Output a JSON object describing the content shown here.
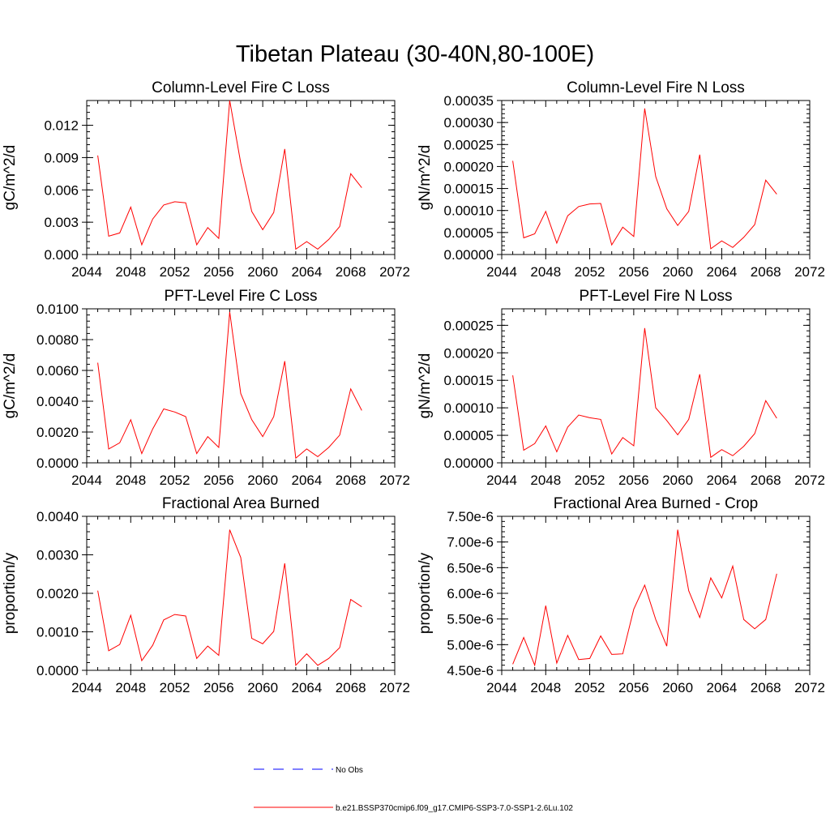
{
  "title": "Tibetan Plateau (30-40N,80-100E)",
  "colors": {
    "model": "#ff0000",
    "obs": "#0000ff",
    "axes": "#000000"
  },
  "legend": [
    {
      "label": "No Obs",
      "color": "#0000ff",
      "style": "dashed"
    },
    {
      "label": "b.e21.BSSP370cmip6.f09_g17.CMIP6-SSP3-7.0-SSP1-2.6Lu.102",
      "color": "#ff0000",
      "style": "solid"
    }
  ],
  "chart_data": [
    {
      "type": "line",
      "title": "Column-Level Fire C Loss",
      "ylabel": "gC/m^2/d",
      "xlim": [
        2044,
        2072
      ],
      "ylim": [
        0,
        0.0143
      ],
      "xticks": [
        "2044",
        "2048",
        "2052",
        "2056",
        "2060",
        "2064",
        "2068",
        "2072"
      ],
      "yticks": [
        {
          "v": 0,
          "label": "0.000"
        },
        {
          "v": 0.003,
          "label": "0.003"
        },
        {
          "v": 0.006,
          "label": "0.006"
        },
        {
          "v": 0.009,
          "label": "0.009"
        },
        {
          "v": 0.012,
          "label": "0.012"
        }
      ],
      "x": [
        2045,
        2046,
        2047,
        2048,
        2049,
        2050,
        2051,
        2052,
        2053,
        2054,
        2055,
        2056,
        2057,
        2058,
        2059,
        2060,
        2061,
        2062,
        2063,
        2064,
        2065,
        2066,
        2067,
        2068,
        2069
      ],
      "series": [
        {
          "values": [
            0.0092,
            0.0017,
            0.002,
            0.0044,
            0.0009,
            0.0033,
            0.0046,
            0.0049,
            0.0048,
            0.0009,
            0.0025,
            0.0015,
            0.0143,
            0.0085,
            0.004,
            0.0023,
            0.0039,
            0.0098,
            0.0005,
            0.0012,
            0.0005,
            0.0014,
            0.0026,
            0.0075,
            0.0062
          ]
        }
      ]
    },
    {
      "type": "line",
      "title": "Column-Level Fire N Loss",
      "ylabel": "gN/m^2/d",
      "xlim": [
        2044,
        2072
      ],
      "ylim": [
        0,
        0.00035
      ],
      "xticks": [
        "2044",
        "2048",
        "2052",
        "2056",
        "2060",
        "2064",
        "2068",
        "2072"
      ],
      "yticks": [
        {
          "v": 0,
          "label": "0.00000"
        },
        {
          "v": 5e-05,
          "label": "0.00005"
        },
        {
          "v": 0.0001,
          "label": "0.00010"
        },
        {
          "v": 0.00015,
          "label": "0.00015"
        },
        {
          "v": 0.0002,
          "label": "0.00020"
        },
        {
          "v": 0.00025,
          "label": "0.00025"
        },
        {
          "v": 0.0003,
          "label": "0.00030"
        },
        {
          "v": 0.00035,
          "label": "0.00035"
        }
      ],
      "x": [
        2045,
        2046,
        2047,
        2048,
        2049,
        2050,
        2051,
        2052,
        2053,
        2054,
        2055,
        2056,
        2057,
        2058,
        2059,
        2060,
        2061,
        2062,
        2063,
        2064,
        2065,
        2066,
        2067,
        2068,
        2069
      ],
      "series": [
        {
          "values": [
            0.000213,
            3.8e-05,
            4.7e-05,
            9.8e-05,
            2.6e-05,
            8.8e-05,
            0.000109,
            0.000115,
            0.000116,
            2.2e-05,
            6.2e-05,
            4.1e-05,
            0.000332,
            0.000177,
            0.000104,
            6.6e-05,
            9.8e-05,
            0.000227,
            1.3e-05,
            3.1e-05,
            1.6e-05,
            3.9e-05,
            6.8e-05,
            0.000169,
            0.000137
          ]
        }
      ]
    },
    {
      "type": "line",
      "title": "PFT-Level Fire C Loss",
      "ylabel": "gC/m^2/d",
      "xlim": [
        2044,
        2072
      ],
      "ylim": [
        0,
        0.01
      ],
      "xticks": [
        "2044",
        "2048",
        "2052",
        "2056",
        "2060",
        "2064",
        "2068",
        "2072"
      ],
      "yticks": [
        {
          "v": 0,
          "label": "0.0000"
        },
        {
          "v": 0.002,
          "label": "0.0020"
        },
        {
          "v": 0.004,
          "label": "0.0040"
        },
        {
          "v": 0.006,
          "label": "0.0060"
        },
        {
          "v": 0.008,
          "label": "0.0080"
        },
        {
          "v": 0.01,
          "label": "0.0100"
        }
      ],
      "x": [
        2045,
        2046,
        2047,
        2048,
        2049,
        2050,
        2051,
        2052,
        2053,
        2054,
        2055,
        2056,
        2057,
        2058,
        2059,
        2060,
        2061,
        2062,
        2063,
        2064,
        2065,
        2066,
        2067,
        2068,
        2069
      ],
      "series": [
        {
          "values": [
            0.0065,
            0.0009,
            0.0013,
            0.0028,
            0.0006,
            0.0022,
            0.0035,
            0.0033,
            0.003,
            0.0006,
            0.0017,
            0.001,
            0.0098,
            0.0045,
            0.0028,
            0.0017,
            0.003,
            0.0066,
            0.0003,
            0.0009,
            0.0004,
            0.001,
            0.0018,
            0.0048,
            0.0034
          ]
        }
      ]
    },
    {
      "type": "line",
      "title": "PFT-Level Fire N Loss",
      "ylabel": "gN/m^2/d",
      "xlim": [
        2044,
        2072
      ],
      "ylim": [
        0,
        0.00028
      ],
      "xticks": [
        "2044",
        "2048",
        "2052",
        "2056",
        "2060",
        "2064",
        "2068",
        "2072"
      ],
      "yticks": [
        {
          "v": 0,
          "label": "0.00000"
        },
        {
          "v": 5e-05,
          "label": "0.00005"
        },
        {
          "v": 0.0001,
          "label": "0.00010"
        },
        {
          "v": 0.00015,
          "label": "0.00015"
        },
        {
          "v": 0.0002,
          "label": "0.00020"
        },
        {
          "v": 0.00025,
          "label": "0.00025"
        }
      ],
      "x": [
        2045,
        2046,
        2047,
        2048,
        2049,
        2050,
        2051,
        2052,
        2053,
        2054,
        2055,
        2056,
        2057,
        2058,
        2059,
        2060,
        2061,
        2062,
        2063,
        2064,
        2065,
        2066,
        2067,
        2068,
        2069
      ],
      "series": [
        {
          "values": [
            0.000159,
            2.3e-05,
            3.5e-05,
            6.7e-05,
            2e-05,
            6.5e-05,
            8.7e-05,
            8.2e-05,
            7.9e-05,
            1.6e-05,
            4.6e-05,
            3.1e-05,
            0.000245,
            0.0001,
            7.7e-05,
            5.1e-05,
            7.9e-05,
            0.000161,
            1e-05,
            2.4e-05,
            1.3e-05,
            3e-05,
            5.3e-05,
            0.000113,
            8.1e-05
          ]
        }
      ]
    },
    {
      "type": "line",
      "title": "Fractional Area Burned",
      "ylabel": "proportion/y",
      "xlim": [
        2044,
        2072
      ],
      "ylim": [
        0,
        0.004
      ],
      "xticks": [
        "2044",
        "2048",
        "2052",
        "2056",
        "2060",
        "2064",
        "2068",
        "2072"
      ],
      "yticks": [
        {
          "v": 0,
          "label": "0.0000"
        },
        {
          "v": 0.001,
          "label": "0.0010"
        },
        {
          "v": 0.002,
          "label": "0.0020"
        },
        {
          "v": 0.003,
          "label": "0.0030"
        },
        {
          "v": 0.004,
          "label": "0.0040"
        }
      ],
      "x": [
        2045,
        2046,
        2047,
        2048,
        2049,
        2050,
        2051,
        2052,
        2053,
        2054,
        2055,
        2056,
        2057,
        2058,
        2059,
        2060,
        2061,
        2062,
        2063,
        2064,
        2065,
        2066,
        2067,
        2068,
        2069
      ],
      "series": [
        {
          "values": [
            0.00207,
            0.00051,
            0.00067,
            0.00143,
            0.00025,
            0.00065,
            0.00131,
            0.00145,
            0.00141,
            0.00031,
            0.00063,
            0.00039,
            0.00365,
            0.00293,
            0.00083,
            0.00069,
            0.00101,
            0.00278,
            0.00013,
            0.00043,
            0.00013,
            0.00031,
            0.00059,
            0.00184,
            0.00165
          ]
        }
      ]
    },
    {
      "type": "line",
      "title": "Fractional Area Burned - Crop",
      "ylabel": "proportion/y",
      "xlim": [
        2044,
        2072
      ],
      "ylim": [
        4.5e-06,
        7.5e-06
      ],
      "xticks": [
        "2044",
        "2048",
        "2052",
        "2056",
        "2060",
        "2064",
        "2068",
        "2072"
      ],
      "yticks": [
        {
          "v": 4.5e-06,
          "label": "4.50e-6"
        },
        {
          "v": 5e-06,
          "label": "5.00e-6"
        },
        {
          "v": 5.5e-06,
          "label": "5.50e-6"
        },
        {
          "v": 6e-06,
          "label": "6.00e-6"
        },
        {
          "v": 6.5e-06,
          "label": "6.50e-6"
        },
        {
          "v": 7e-06,
          "label": "7.00e-6"
        },
        {
          "v": 7.5e-06,
          "label": "7.50e-6"
        }
      ],
      "x": [
        2045,
        2046,
        2047,
        2048,
        2049,
        2050,
        2051,
        2052,
        2053,
        2054,
        2055,
        2056,
        2057,
        2058,
        2059,
        2060,
        2061,
        2062,
        2063,
        2064,
        2065,
        2066,
        2067,
        2068,
        2069
      ],
      "series": [
        {
          "values": [
            4.62e-06,
            5.14e-06,
            4.6e-06,
            5.76e-06,
            4.64e-06,
            5.18e-06,
            4.71e-06,
            4.73e-06,
            5.17e-06,
            4.81e-06,
            4.82e-06,
            5.69e-06,
            6.16e-06,
            5.49e-06,
            4.97e-06,
            7.24e-06,
            6.05e-06,
            5.53e-06,
            6.3e-06,
            5.91e-06,
            6.53e-06,
            5.49e-06,
            5.31e-06,
            5.49e-06,
            6.38e-06
          ]
        }
      ]
    }
  ]
}
